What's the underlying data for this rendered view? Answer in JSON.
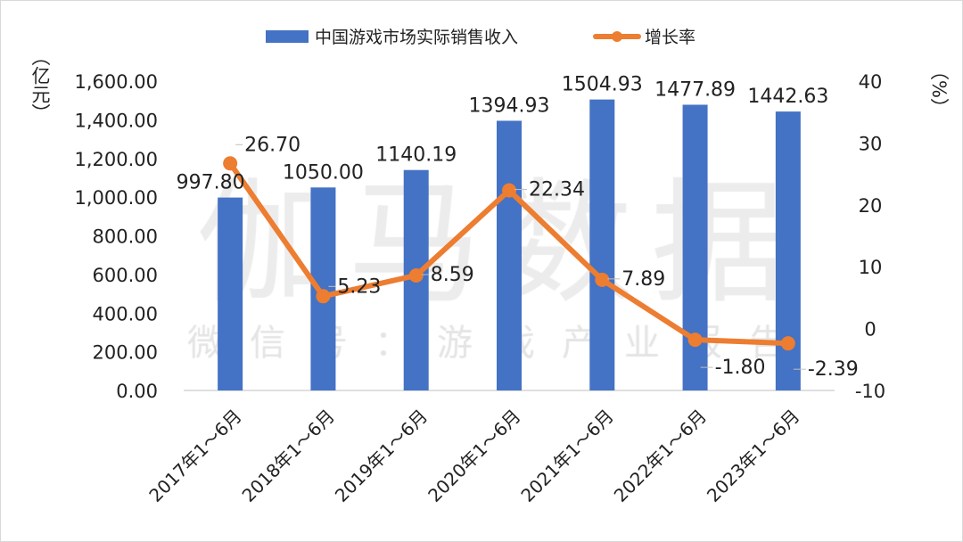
{
  "chart_data": {
    "type": "bar+line",
    "categories": [
      "2017年1～6月",
      "2018年1～6月",
      "2019年1～6月",
      "2020年1～6月",
      "2021年1～6月",
      "2022年1～6月",
      "2023年1～6月"
    ],
    "series": [
      {
        "name": "中国游戏市场实际销售收入",
        "type": "bar",
        "axis": "left",
        "color": "#4472C4",
        "values": [
          997.8,
          1050.0,
          1140.19,
          1394.93,
          1504.93,
          1477.89,
          1442.63
        ],
        "labels": [
          "997.80",
          "1050.00",
          "1140.19",
          "1394.93",
          "1504.93",
          "1477.89",
          "1442.63"
        ]
      },
      {
        "name": "增长率",
        "type": "line",
        "axis": "right",
        "color": "#ED7D31",
        "values": [
          26.7,
          5.23,
          8.59,
          22.34,
          7.89,
          -1.8,
          -2.39
        ],
        "labels": [
          "26.70",
          "5.23",
          "8.59",
          "22.34",
          "7.89",
          "-1.80",
          "-2.39"
        ]
      }
    ],
    "y_left": {
      "label": "（亿元）",
      "ylim": [
        0,
        1600
      ],
      "ticks": [
        "0.00",
        "200.00",
        "400.00",
        "600.00",
        "800.00",
        "1,000.00",
        "1,200.00",
        "1,400.00",
        "1,600.00"
      ]
    },
    "y_right": {
      "label": "（%）",
      "ylim": [
        -10,
        40
      ],
      "ticks": [
        "-10",
        "0",
        "10",
        "20",
        "30",
        "40"
      ]
    },
    "grid": false,
    "legend": "top"
  },
  "watermark": {
    "main": "伽马数据",
    "sub": "微信号：游戏产业报告"
  }
}
